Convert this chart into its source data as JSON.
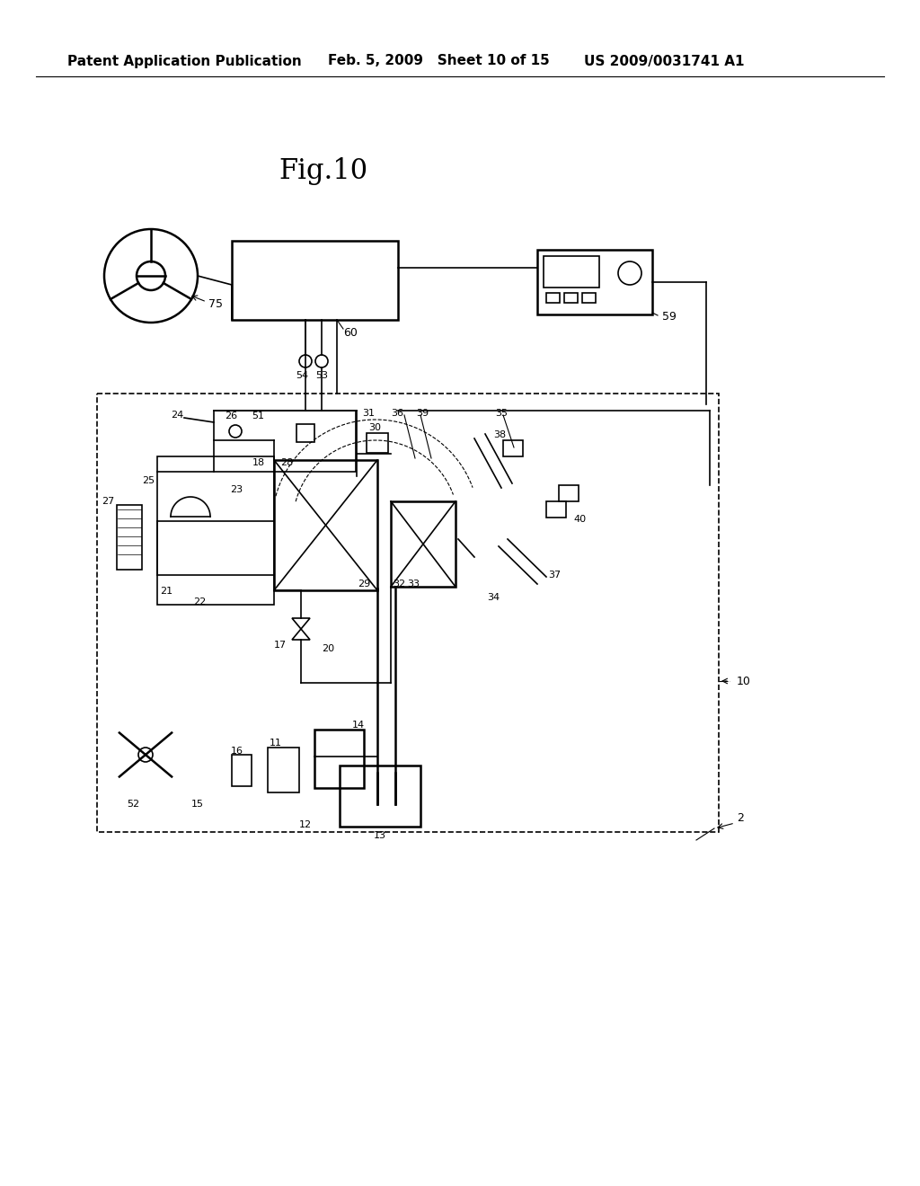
{
  "bg_color": "#ffffff",
  "header_left": "Patent Application Publication",
  "header_mid": "Feb. 5, 2009   Sheet 10 of 15",
  "header_right": "US 2009/0031741 A1",
  "fig_title": "Fig.10",
  "header_fontsize": 11,
  "title_fontsize": 22
}
